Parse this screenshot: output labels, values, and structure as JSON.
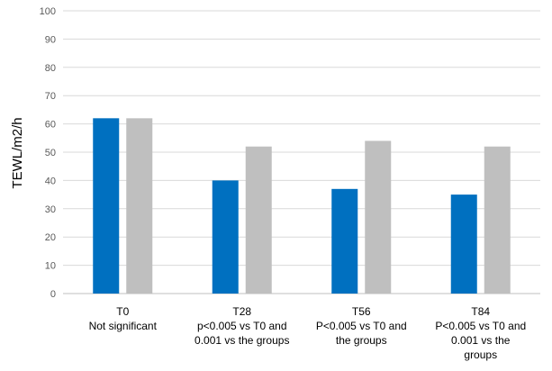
{
  "chart_data": {
    "type": "bar",
    "title": "",
    "xlabel": "",
    "ylabel": "TEWL/m2/h",
    "ylim": [
      0,
      100
    ],
    "yticks": [
      0,
      10,
      20,
      30,
      40,
      50,
      60,
      70,
      80,
      90,
      100
    ],
    "grid": true,
    "legend": "none",
    "categories": [
      [
        "T0",
        "Not significant"
      ],
      [
        "T28",
        "p<0.005 vs T0 and",
        "0.001 vs the groups"
      ],
      [
        "T56",
        "P<0.005 vs T0 and",
        "the groups"
      ],
      [
        "T84",
        "P<0.005 vs T0 and",
        "0.001 vs the",
        "groups"
      ]
    ],
    "series": [
      {
        "values": [
          62,
          40,
          37,
          35
        ],
        "color": "#0070c0"
      },
      {
        "values": [
          62,
          52,
          54,
          52
        ],
        "color": "#bfbfbf"
      }
    ],
    "colors": {
      "grid": "#d9d9d9",
      "axis": "#bfbfbf"
    }
  }
}
